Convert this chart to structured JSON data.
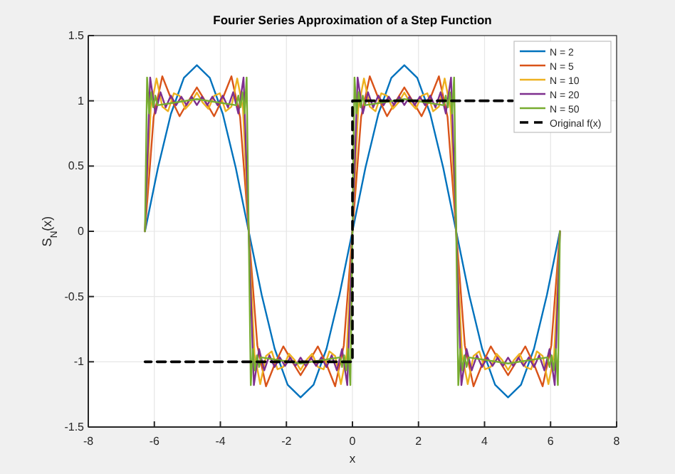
{
  "chart_data": {
    "type": "line",
    "title": "Fourier Series Approximation of a Step Function",
    "xlabel": "x",
    "ylabel": "S$_{N}$(x)",
    "xlim": [
      -8,
      8
    ],
    "ylim": [
      -1.5,
      1.5
    ],
    "xticks": [
      -8,
      -6,
      -4,
      -2,
      0,
      2,
      4,
      6,
      8
    ],
    "yticks": [
      -1.5,
      -1,
      -0.5,
      0,
      0.5,
      1,
      1.5
    ],
    "grid": true,
    "legend": "top right",
    "line_style": "solid",
    "series": [
      {
        "name": "N = 2",
        "color": "#0072bd",
        "x": [
          -6.283,
          -5.89,
          -5.498,
          -5.105,
          -4.712,
          -4.32,
          -3.927,
          -3.534,
          -3.142,
          -2.749,
          -2.356,
          -1.963,
          -1.571,
          -1.178,
          -0.785,
          -0.393,
          0,
          0.393,
          0.785,
          1.178,
          1.571,
          1.963,
          2.356,
          2.749,
          3.142,
          3.534,
          3.927,
          4.32,
          4.712,
          5.105,
          5.498,
          5.89,
          6.283
        ],
        "values": [
          0,
          0.487,
          0.9,
          1.176,
          1.273,
          1.176,
          0.9,
          0.487,
          0,
          -0.487,
          -0.9,
          -1.176,
          -1.273,
          -1.176,
          -0.9,
          -0.487,
          0,
          0.487,
          0.9,
          1.176,
          1.273,
          1.176,
          0.9,
          0.487,
          0,
          -0.487,
          -0.9,
          -1.176,
          -1.273,
          -1.176,
          -0.9,
          -0.487,
          0
        ]
      },
      {
        "name": "N = 5",
        "color": "#d95319",
        "x": [
          -6.283,
          -6.021,
          -5.759,
          -5.498,
          -5.236,
          -4.974,
          -4.712,
          -4.45,
          -4.189,
          -3.927,
          -3.665,
          -3.403,
          -3.142,
          -2.88,
          -2.618,
          -2.356,
          -2.094,
          -1.833,
          -1.571,
          -1.309,
          -1.047,
          -0.785,
          -0.524,
          -0.262,
          0,
          0.262,
          0.524,
          0.785,
          1.047,
          1.309,
          1.571,
          1.833,
          2.094,
          2.356,
          2.618,
          2.88,
          3.142,
          3.404,
          3.666,
          3.927,
          4.189,
          4.451,
          4.713,
          4.975,
          5.236,
          5.498,
          5.76,
          6.022,
          6.283
        ],
        "values": [
          0,
          0.875,
          1.188,
          1.02,
          0.882,
          0.995,
          1.103,
          0.995,
          0.882,
          1.02,
          1.188,
          0.875,
          0,
          -0.875,
          -1.188,
          -1.02,
          -0.882,
          -0.995,
          -1.103,
          -0.995,
          -0.882,
          -1.02,
          -1.188,
          -0.875,
          0,
          0.875,
          1.188,
          1.02,
          0.882,
          0.995,
          1.103,
          0.995,
          0.882,
          1.02,
          1.188,
          0.875,
          0,
          -0.875,
          -1.188,
          -1.02,
          -0.882,
          -0.995,
          -1.103,
          -0.995,
          -0.882,
          -1.02,
          -1.188,
          -0.875,
          0
        ]
      },
      {
        "name": "N = 10",
        "color": "#edb120",
        "x": [
          -6.283,
          -6.108,
          -5.934,
          -5.759,
          -5.585,
          -5.41,
          -5.236,
          -5.061,
          -4.887,
          -4.712,
          -4.538,
          -4.363,
          -4.189,
          -4.014,
          -3.84,
          -3.665,
          -3.49,
          -3.316,
          -3.142,
          -2.967,
          -2.793,
          -2.618,
          -2.444,
          -2.269,
          -2.095,
          -1.92,
          -1.746,
          -1.571,
          -1.397,
          -1.222,
          -1.048,
          -0.873,
          -0.699,
          -0.524,
          -0.349,
          -0.175,
          0,
          0.175,
          0.349,
          0.524,
          0.698,
          0.873,
          1.047,
          1.222,
          1.396,
          1.571,
          1.745,
          1.92,
          2.094,
          2.269,
          2.443,
          2.618,
          2.793,
          2.967,
          3.142,
          3.317,
          3.491,
          3.666,
          3.84,
          4.015,
          4.189,
          4.364,
          4.538,
          4.713,
          4.887,
          5.062,
          5.236,
          5.411,
          5.585,
          5.76,
          5.935,
          6.109,
          6.283
        ],
        "values": [
          0,
          0.941,
          1.171,
          0.956,
          0.92,
          1.058,
          1.039,
          0.938,
          0.988,
          1.063,
          0.988,
          0.938,
          1.039,
          1.058,
          0.92,
          0.956,
          1.171,
          0.941,
          0,
          -0.941,
          -1.171,
          -0.956,
          -0.92,
          -1.058,
          -1.039,
          -0.938,
          -0.988,
          -1.063,
          -0.988,
          -0.938,
          -1.039,
          -1.058,
          -0.92,
          -0.956,
          -1.171,
          -0.941,
          0,
          0.941,
          1.171,
          0.956,
          0.92,
          1.058,
          1.039,
          0.938,
          0.988,
          1.063,
          0.988,
          0.938,
          1.039,
          1.058,
          0.92,
          0.956,
          1.171,
          0.941,
          0,
          -0.941,
          -1.171,
          -0.956,
          -0.92,
          -1.058,
          -1.039,
          -0.938,
          -0.988,
          -1.063,
          -0.988,
          -0.938,
          -1.039,
          -1.058,
          -0.92,
          -0.956,
          -1.171,
          -0.941,
          0
        ]
      },
      {
        "name": "N = 20",
        "color": "#7e2f8e",
        "x": [
          -6.283,
          -6.126,
          -5.969,
          -5.812,
          -5.655,
          -5.498,
          -5.341,
          -5.183,
          -5.026,
          -4.869,
          -4.712,
          -4.555,
          -4.398,
          -4.241,
          -4.084,
          -3.927,
          -3.77,
          -3.613,
          -3.456,
          -3.298,
          -3.142,
          -2.985,
          -2.828,
          -2.671,
          -2.514,
          -2.357,
          -2.2,
          -2.042,
          -1.885,
          -1.728,
          -1.571,
          -1.414,
          -1.257,
          -1.1,
          -0.943,
          -0.786,
          -0.629,
          -0.472,
          -0.315,
          -0.157,
          0,
          0.157,
          0.314,
          0.471,
          0.628,
          0.785,
          0.942,
          1.1,
          1.257,
          1.414,
          1.571,
          1.728,
          1.885,
          2.042,
          2.199,
          2.356,
          2.513,
          2.67,
          2.827,
          2.985,
          3.142,
          3.299,
          3.456,
          3.613,
          3.77,
          3.927,
          4.084,
          4.241,
          4.398,
          4.555,
          4.713,
          4.87,
          5.027,
          5.184,
          5.341,
          5.498,
          5.655,
          5.812,
          5.969,
          6.127,
          6.283
        ],
        "values": [
          0,
          1.179,
          0.903,
          1.066,
          0.95,
          1.04,
          0.966,
          1.032,
          0.968,
          1.032,
          0.968,
          1.032,
          0.968,
          1.032,
          0.966,
          1.04,
          0.95,
          1.066,
          0.903,
          1.179,
          0,
          -1.179,
          -0.903,
          -1.066,
          -0.95,
          -1.04,
          -0.966,
          -1.032,
          -0.968,
          -1.032,
          -0.968,
          -1.032,
          -0.968,
          -1.032,
          -0.966,
          -1.04,
          -0.95,
          -1.066,
          -0.903,
          -1.179,
          0,
          1.179,
          0.903,
          1.066,
          0.95,
          1.04,
          0.966,
          1.032,
          0.968,
          1.032,
          0.968,
          1.032,
          0.968,
          1.032,
          0.966,
          1.04,
          0.95,
          1.066,
          0.903,
          1.179,
          0,
          -1.179,
          -0.903,
          -1.066,
          -0.95,
          -1.04,
          -0.966,
          -1.032,
          -0.968,
          -1.032,
          -0.968,
          -1.032,
          -0.968,
          -1.032,
          -0.966,
          -1.04,
          -0.95,
          -1.066,
          -0.903,
          -1.179,
          0
        ]
      },
      {
        "name": "N = 50",
        "color": "#77ac30",
        "x": [
          -6.283,
          -6.22,
          -6.157,
          -6.095,
          -6.032,
          -5.969,
          -5.906,
          -4.712,
          -3.518,
          -3.456,
          -3.393,
          -3.33,
          -3.267,
          -3.204,
          -3.142,
          -3.079,
          -3.016,
          -2.954,
          -2.891,
          -2.828,
          -2.765,
          -1.571,
          -0.377,
          -0.315,
          -0.252,
          -0.189,
          -0.126,
          -0.063,
          0,
          0.063,
          0.126,
          0.188,
          0.251,
          0.314,
          0.377,
          1.571,
          2.765,
          2.827,
          2.89,
          2.953,
          3.016,
          3.079,
          3.142,
          3.205,
          3.268,
          3.33,
          3.393,
          3.456,
          3.519,
          4.713,
          5.907,
          5.969,
          6.032,
          6.095,
          6.158,
          6.221,
          6.283
        ],
        "values": [
          0,
          1.179,
          0.903,
          1.066,
          0.95,
          1.04,
          0.966,
          1.013,
          0.966,
          1.04,
          0.95,
          1.066,
          0.903,
          1.179,
          0,
          -1.179,
          -0.903,
          -1.066,
          -0.95,
          -1.04,
          -0.966,
          -1.013,
          -0.966,
          -1.04,
          -0.95,
          -1.066,
          -0.903,
          -1.179,
          0,
          1.179,
          0.903,
          1.066,
          0.95,
          1.04,
          0.966,
          1.013,
          0.966,
          1.04,
          0.95,
          1.066,
          0.903,
          1.179,
          0,
          -1.179,
          -0.903,
          -1.066,
          -0.95,
          -1.04,
          -0.966,
          -1.013,
          -0.966,
          -1.04,
          -0.95,
          -1.066,
          -0.903,
          -1.179,
          0
        ]
      },
      {
        "name": "Original f(x)",
        "color": "#000000",
        "line_style": "dashed",
        "x": [
          -6.283,
          0,
          0,
          4.85
        ],
        "values": [
          -1,
          -1,
          1,
          1
        ]
      }
    ]
  }
}
